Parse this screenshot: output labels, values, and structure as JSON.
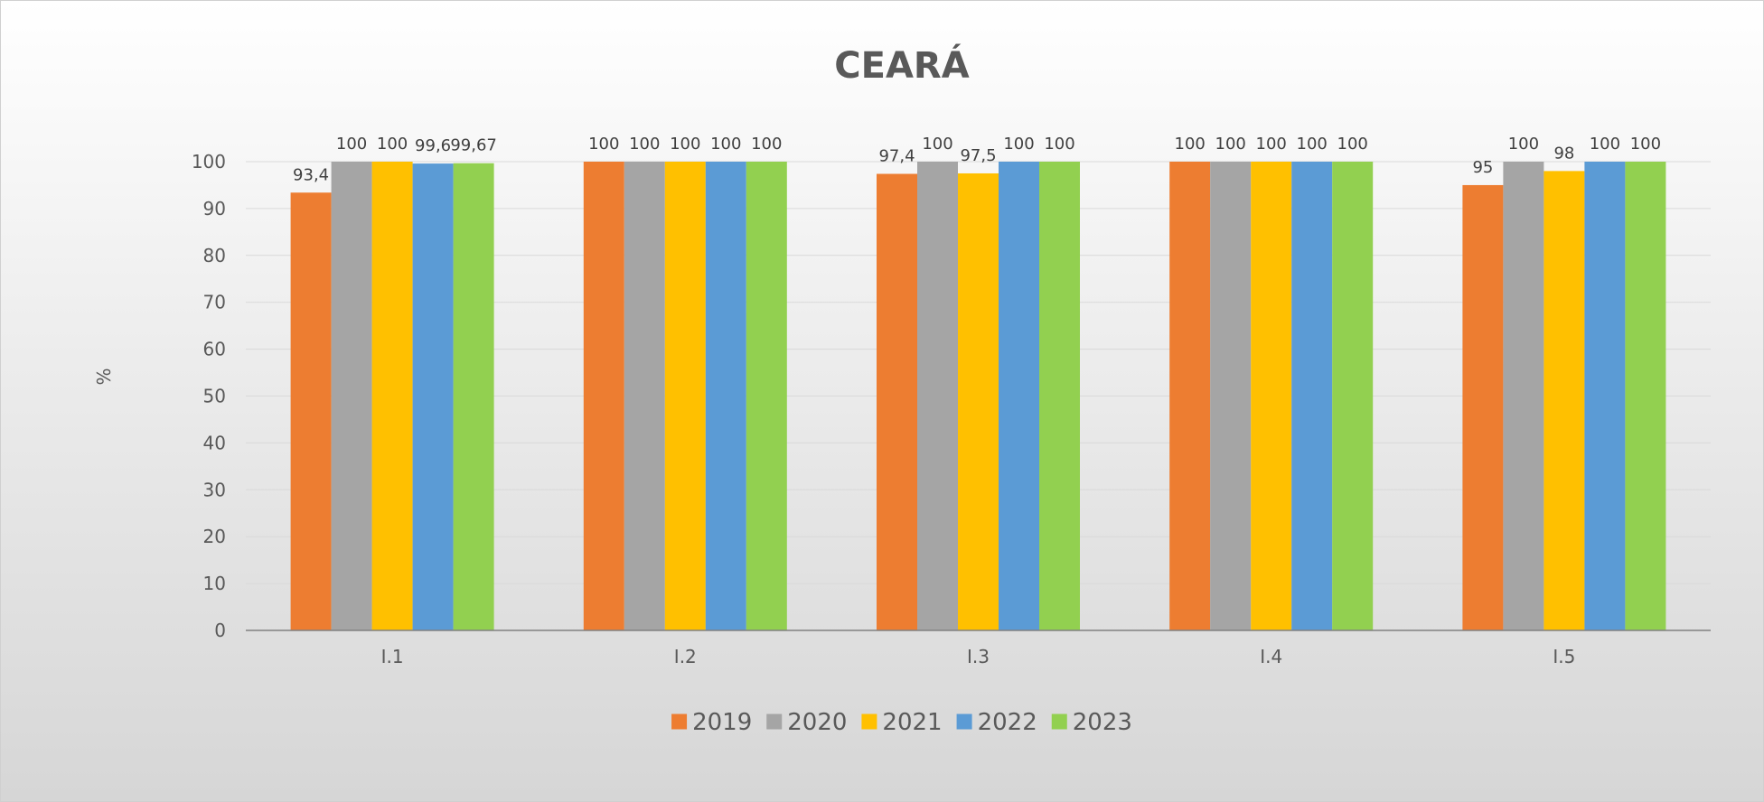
{
  "chart_data": {
    "type": "bar",
    "title": "CEARÁ",
    "ylabel": "%",
    "xlabel": "",
    "ylim": [
      0,
      100
    ],
    "yticks": [
      0,
      10,
      20,
      30,
      40,
      50,
      60,
      70,
      80,
      90,
      100
    ],
    "grid": true,
    "legend_position": "bottom",
    "categories": [
      "I.1",
      "I.2",
      "I.3",
      "I.4",
      "I.5"
    ],
    "series": [
      {
        "name": "2019",
        "color": "#ED7D31",
        "values": [
          93.4,
          100,
          97.4,
          100,
          95
        ],
        "labels": [
          "93,4",
          "100",
          "97,4",
          "100",
          "95"
        ]
      },
      {
        "name": "2020",
        "color": "#A5A5A5",
        "values": [
          100,
          100,
          100,
          100,
          100
        ],
        "labels": [
          "100",
          "100",
          "100",
          "100",
          "100"
        ]
      },
      {
        "name": "2021",
        "color": "#FFC000",
        "values": [
          100,
          100,
          97.5,
          100,
          98
        ],
        "labels": [
          "100",
          "100",
          "97,5",
          "100",
          "98"
        ]
      },
      {
        "name": "2022",
        "color": "#5B9BD5",
        "values": [
          99.6,
          100,
          100,
          100,
          100
        ],
        "labels": [
          "99,6",
          "100",
          "100",
          "100",
          "100"
        ]
      },
      {
        "name": "2023",
        "color": "#92D050",
        "values": [
          99.67,
          100,
          100,
          100,
          100
        ],
        "labels": [
          "99,67",
          "100",
          "100",
          "100",
          "100"
        ]
      }
    ]
  }
}
